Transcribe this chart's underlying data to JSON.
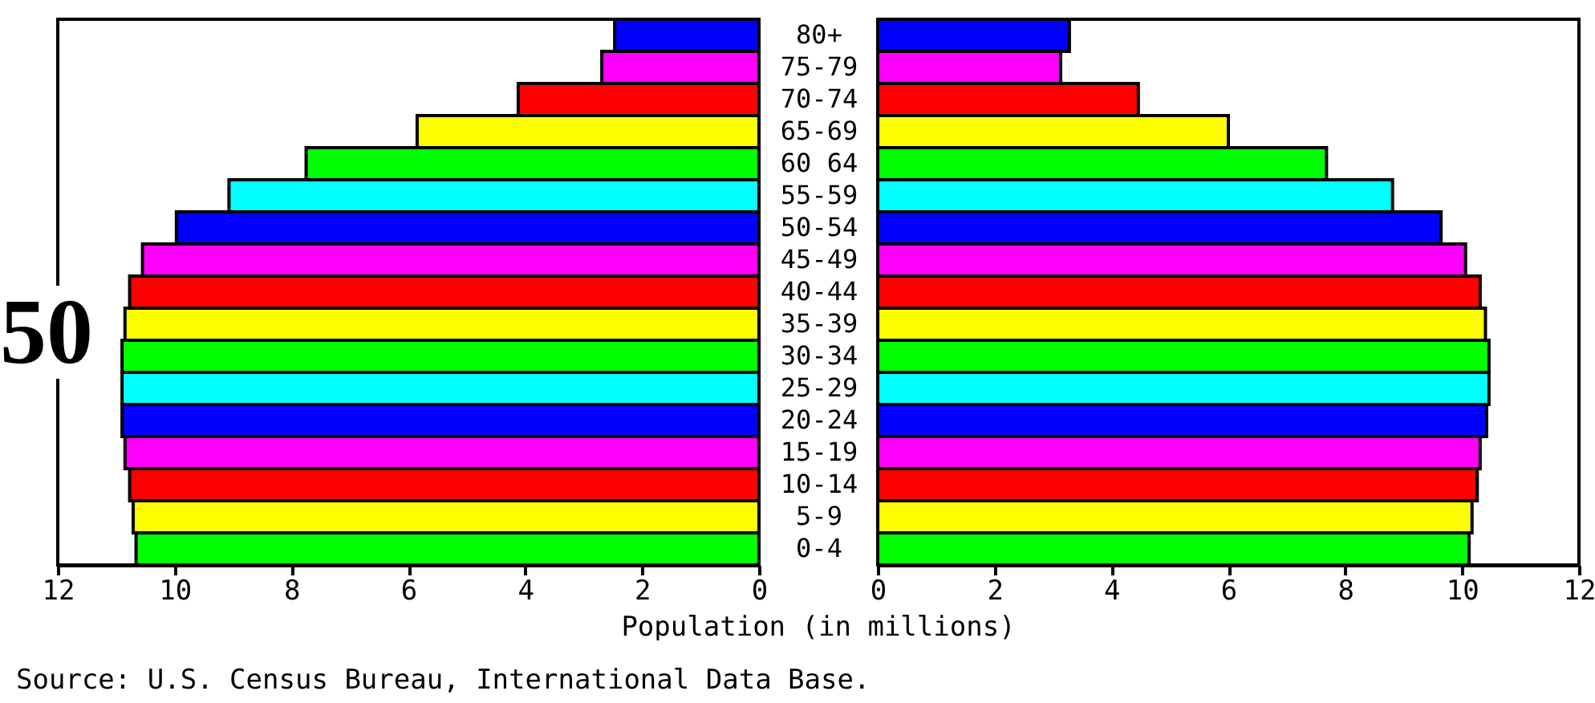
{
  "chart_data": [
    {
      "type": "bar",
      "orientation": "horizontal",
      "tick_labels": "x",
      "annotations": [
        "50",
        "Source: U.S. Census Bureau, International Data Base."
      ],
      "values": [
        2.47,
        2.69,
        4.12,
        5.85,
        7.75,
        9.07,
        9.97,
        10.55,
        10.77,
        10.85,
        10.9,
        10.9,
        10.9,
        10.85,
        10.77,
        10.71,
        10.66
      ],
      "colors": [
        "#0000ff",
        "#ff00ff",
        "#ff0000",
        "#ffff00",
        "#00ff00",
        "#00ffff",
        "#0000ff",
        "#ff00ff",
        "#ff0000",
        "#ffff00",
        "#00ff00",
        "#00ffff",
        "#0000ff",
        "#ff00ff",
        "#ff0000",
        "#ffff00",
        "#00ff00"
      ],
      "xlim": [
        12,
        0
      ],
      "xticks": [
        12,
        10,
        8,
        6,
        4,
        2,
        0
      ]
    },
    {
      "type": "bar",
      "orientation": "horizontal",
      "xlabel": "Population (in millions)",
      "categories": [
        "80+",
        "75-79",
        "70-74",
        "65-69",
        "60 64",
        "55-59",
        "50-54",
        "45-49",
        "40-44",
        "35-39",
        "30-34",
        "25-29",
        "20-24",
        "15-19",
        "10-14",
        "5-9",
        "0-4"
      ],
      "values": [
        3.28,
        3.13,
        4.46,
        6.0,
        7.68,
        8.81,
        9.64,
        10.06,
        10.31,
        10.4,
        10.46,
        10.46,
        10.42,
        10.31,
        10.26,
        10.17,
        10.12
      ],
      "colors": [
        "#0000ff",
        "#ff00ff",
        "#ff0000",
        "#ffff00",
        "#00ff00",
        "#00ffff",
        "#0000ff",
        "#ff00ff",
        "#ff0000",
        "#ffff00",
        "#00ff00",
        "#00ffff",
        "#0000ff",
        "#ff00ff",
        "#ff0000",
        "#ffff00",
        "#00ff00"
      ],
      "xlim": [
        0,
        12
      ],
      "xticks": [
        0,
        2,
        4,
        6,
        8,
        10,
        12
      ]
    }
  ]
}
